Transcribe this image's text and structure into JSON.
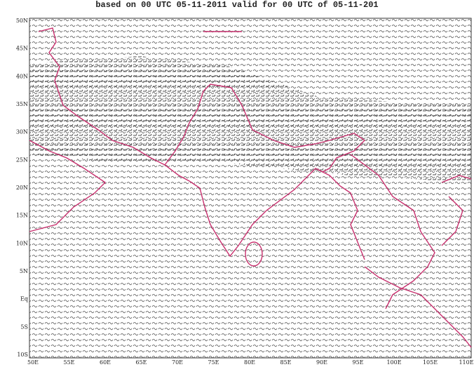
{
  "map": {
    "title": "based on 00 UTC 05-11-2011 valid for 00 UTC of 05-11-201",
    "lat_labels": [
      "50N",
      "45N",
      "40N",
      "35N",
      "30N",
      "25N",
      "20N",
      "15N",
      "10N",
      "5N",
      "Eq",
      "5S",
      "10S"
    ],
    "lon_labels": [
      "50E",
      "55E",
      "60E",
      "65E",
      "70E",
      "75E",
      "80E",
      "85E",
      "90E",
      "95E",
      "100E",
      "105E",
      "110E"
    ]
  }
}
